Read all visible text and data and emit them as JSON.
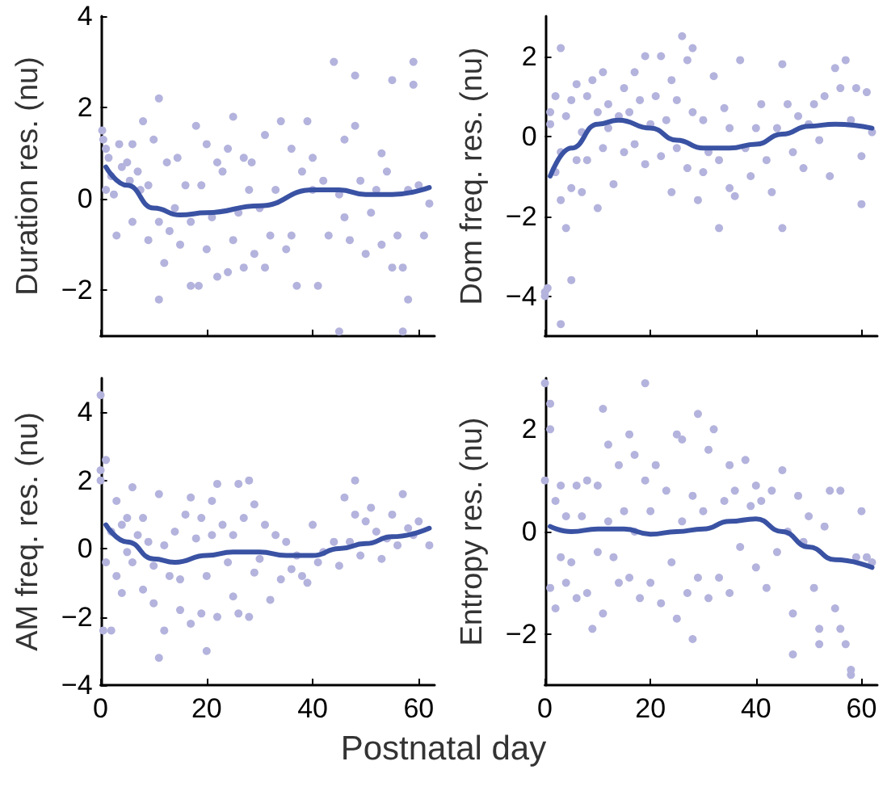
{
  "chart_data": [
    {
      "type": "scatter",
      "ylabel": "Duration res. (nu)",
      "xlim": [
        0,
        63
      ],
      "xticks": [
        0,
        20,
        40,
        60
      ],
      "ylim": [
        -3,
        4
      ],
      "yticks": [
        -2,
        0,
        2,
        4
      ],
      "tick_labels": "y",
      "marker": "circle",
      "series": [
        {
          "color": "#b3b3dd",
          "x": [
            0.3,
            0.5,
            1,
            1.5,
            2,
            1,
            2.5,
            3,
            3.5,
            4,
            5,
            5.5,
            6,
            6,
            7,
            7.5,
            8,
            9,
            9,
            10,
            11,
            11,
            11,
            12,
            12.5,
            13,
            14,
            14.5,
            15,
            16,
            17,
            17,
            18,
            18.5,
            19,
            20,
            20,
            21,
            22,
            22,
            23,
            24,
            24,
            25,
            25,
            26,
            27,
            27,
            28,
            28.5,
            29,
            30,
            31,
            31,
            32,
            33,
            34,
            35,
            36,
            36,
            37,
            38,
            39,
            40,
            40,
            41,
            42,
            43,
            44,
            45,
            46,
            46,
            47,
            48,
            48,
            49,
            50,
            51,
            52,
            53,
            53,
            54,
            55,
            55,
            56,
            57,
            57,
            58,
            58,
            59,
            59,
            60,
            61,
            62,
            45
          ],
          "values": [
            1.5,
            1.3,
            1.1,
            0.9,
            0.5,
            0.2,
            0.1,
            -0.8,
            1.2,
            0.7,
            0.8,
            0.4,
            1.2,
            -0.5,
            0.6,
            0.2,
            1.7,
            0.3,
            -0.9,
            1.3,
            -0.5,
            2.2,
            -2.2,
            -1.4,
            0.8,
            -0.7,
            -0.2,
            0.9,
            -1.0,
            0.3,
            -0.5,
            -1.9,
            1.6,
            -1.9,
            0.3,
            -1.1,
            1.2,
            -0.4,
            -1.7,
            0.8,
            0.6,
            1.1,
            -1.6,
            1.8,
            -0.9,
            -0.3,
            0.9,
            -1.5,
            0.2,
            0.8,
            -1.2,
            -0.2,
            1.4,
            -1.5,
            -0.8,
            0.2,
            1.7,
            -1.1,
            1.1,
            -0.8,
            -1.9,
            0.6,
            1.7,
            0.9,
            0.2,
            -1.9,
            0.4,
            -0.8,
            3.0,
            0.1,
            -0.4,
            1.3,
            -0.9,
            2.7,
            1.6,
            0.4,
            -1.2,
            -0.3,
            0.2,
            1.0,
            -1.0,
            0.6,
            -1.5,
            2.6,
            -0.8,
            -2.9,
            -1.5,
            -2.2,
            0.2,
            2.5,
            3.0,
            0.3,
            -0.8,
            -0.1,
            -2.9
          ]
        },
        {
          "type": "line",
          "color": "#3a52a3",
          "marker": "none",
          "x": [
            1,
            5,
            10,
            15,
            20,
            30,
            40,
            45,
            50,
            55,
            62
          ],
          "values": [
            0.7,
            0.3,
            -0.2,
            -0.35,
            -0.3,
            -0.15,
            0.2,
            0.2,
            0.1,
            0.1,
            0.25
          ]
        }
      ]
    },
    {
      "type": "scatter",
      "ylabel": "Dom freq. res. (nu)",
      "xlim": [
        0,
        63
      ],
      "xticks": [
        0,
        20,
        40,
        60
      ],
      "ylim": [
        -5,
        3
      ],
      "yticks": [
        -4,
        -2,
        0,
        2
      ],
      "tick_labels": "y",
      "marker": "circle",
      "series": [
        {
          "color": "#b3b3dd",
          "x": [
            0,
            0,
            0.5,
            3,
            5,
            3,
            1,
            1,
            2,
            2,
            3,
            3,
            4,
            4,
            5,
            5,
            6,
            6,
            7,
            7,
            8,
            8,
            9,
            10,
            10,
            11,
            11,
            12,
            12,
            13,
            14,
            15,
            15,
            16,
            17,
            17,
            18,
            19,
            19,
            20,
            21,
            22,
            22,
            23,
            24,
            24,
            25,
            25,
            26,
            27,
            27,
            28,
            28,
            29,
            30,
            30,
            31,
            32,
            33,
            33,
            34,
            35,
            35,
            36,
            37,
            38,
            39,
            40,
            41,
            42,
            43,
            44,
            45,
            45,
            46,
            47,
            48,
            49,
            50,
            51,
            52,
            53,
            54,
            55,
            56,
            57,
            58,
            59,
            60,
            60,
            61,
            62
          ],
          "values": [
            -3.9,
            -4.0,
            -3.8,
            -4.7,
            -3.6,
            2.2,
            0.6,
            0.3,
            -0.9,
            1.0,
            -1.6,
            -0.4,
            0.5,
            -2.3,
            0.9,
            -1.3,
            1.3,
            -0.6,
            0.1,
            -1.4,
            1.0,
            -0.6,
            1.4,
            -1.8,
            0.6,
            1.6,
            -0.3,
            0.2,
            0.8,
            -1.2,
            0.5,
            1.2,
            -0.4,
            0.6,
            1.6,
            -0.2,
            0.9,
            2.0,
            -0.7,
            0.3,
            1.0,
            2.0,
            -0.5,
            0.4,
            1.4,
            -1.4,
            0.9,
            -0.3,
            2.5,
            1.9,
            -0.8,
            2.2,
            0.6,
            -1.6,
            0.4,
            -0.9,
            -0.4,
            1.5,
            -2.3,
            -0.6,
            0.7,
            -1.3,
            0.2,
            -1.5,
            1.9,
            -0.3,
            -1.0,
            0.2,
            0.8,
            -0.6,
            -1.4,
            0.2,
            -2.3,
            1.8,
            0.8,
            -0.4,
            0.5,
            -0.8,
            0.3,
            0.8,
            -0.1,
            1.0,
            -1.0,
            1.7,
            1.2,
            1.9,
            0.4,
            1.2,
            -0.5,
            -1.7,
            1.1,
            0.1
          ]
        },
        {
          "type": "line",
          "color": "#3a52a3",
          "marker": "none",
          "x": [
            1,
            5,
            10,
            14,
            20,
            25,
            30,
            35,
            40,
            45,
            50,
            55,
            62
          ],
          "values": [
            -1.0,
            -0.3,
            0.3,
            0.4,
            0.2,
            -0.1,
            -0.3,
            -0.3,
            -0.2,
            0.05,
            0.25,
            0.3,
            0.2
          ]
        }
      ]
    },
    {
      "type": "scatter",
      "ylabel": "AM freq. res. (nu)",
      "xlabel": "Postnatal day",
      "xlim": [
        0,
        63
      ],
      "xticks": [
        0,
        20,
        40,
        60
      ],
      "ylim": [
        -4,
        5
      ],
      "yticks": [
        -4,
        -2,
        0,
        2,
        4
      ],
      "marker": "circle",
      "series": [
        {
          "color": "#b3b3dd",
          "x": [
            0,
            0,
            0,
            0.5,
            1,
            1,
            2,
            2,
            3,
            3,
            4,
            4,
            5,
            5,
            6,
            6,
            7,
            8,
            8,
            9,
            10,
            10,
            11,
            11,
            12,
            12,
            13,
            14,
            15,
            15,
            16,
            17,
            17,
            18,
            19,
            19,
            20,
            20,
            21,
            21,
            22,
            22,
            23,
            24,
            25,
            25,
            26,
            26,
            27,
            28,
            28,
            29,
            29,
            30,
            31,
            32,
            33,
            34,
            35,
            36,
            37,
            38,
            39,
            40,
            41,
            42,
            44,
            45,
            46,
            47,
            48,
            48,
            49,
            50,
            51,
            52,
            53,
            54,
            55,
            56,
            57,
            58,
            59,
            60,
            62
          ],
          "values": [
            4.5,
            2.3,
            2.0,
            -2.4,
            2.6,
            -0.4,
            -2.4,
            0.5,
            1.4,
            -0.8,
            0.7,
            -1.3,
            0.9,
            -0.1,
            1.8,
            -0.4,
            0.4,
            -1.2,
            0.9,
            0.2,
            -1.6,
            -0.5,
            1.6,
            -3.2,
            0.1,
            -2.4,
            -0.8,
            0.5,
            -1.8,
            -0.9,
            1.0,
            -2.2,
            1.5,
            0.3,
            -1.9,
            0.9,
            -3.0,
            -0.8,
            1.4,
            0.4,
            1.9,
            -2.0,
            0.7,
            -0.4,
            -1.4,
            0.4,
            -1.9,
            1.9,
            0.9,
            -2.0,
            2.0,
            1.3,
            -0.7,
            -0.3,
            0.7,
            -1.5,
            0.4,
            -0.9,
            0.2,
            -0.6,
            -0.2,
            -0.8,
            -1.0,
            0.7,
            -0.4,
            -0.1,
            0.2,
            -0.5,
            1.5,
            0.2,
            2.0,
            1.0,
            -0.2,
            0.8,
            1.2,
            0.5,
            -0.3,
            0.3,
            1.0,
            0.1,
            1.6,
            0.6,
            0.4,
            0.8,
            0.1
          ]
        },
        {
          "type": "line",
          "color": "#3a52a3",
          "marker": "none",
          "x": [
            1,
            5,
            10,
            14,
            20,
            25,
            30,
            35,
            40,
            45,
            50,
            55,
            62
          ],
          "values": [
            0.7,
            0.2,
            -0.3,
            -0.4,
            -0.2,
            -0.1,
            -0.1,
            -0.2,
            -0.2,
            0.0,
            0.15,
            0.35,
            0.6
          ]
        }
      ]
    },
    {
      "type": "scatter",
      "ylabel": "Entropy res. (nu)",
      "xlim": [
        0,
        63
      ],
      "xticks": [
        0,
        20,
        40,
        60
      ],
      "ylim": [
        -3,
        3
      ],
      "yticks": [
        -2,
        0,
        2
      ],
      "marker": "circle",
      "series": [
        {
          "color": "#b3b3dd",
          "x": [
            0,
            1,
            1,
            0,
            1,
            2,
            2,
            3,
            3,
            4,
            4,
            5,
            6,
            6,
            7,
            8,
            8,
            9,
            10,
            10,
            11,
            11,
            12,
            12,
            13,
            14,
            14,
            15,
            16,
            16,
            17,
            17,
            18,
            19,
            19,
            20,
            20,
            21,
            22,
            23,
            24,
            25,
            25,
            26,
            26,
            27,
            28,
            28,
            29,
            29,
            30,
            31,
            31,
            32,
            33,
            34,
            35,
            35,
            36,
            37,
            38,
            39,
            40,
            40,
            41,
            42,
            43,
            44,
            45,
            46,
            47,
            47,
            48,
            49,
            50,
            51,
            52,
            52,
            53,
            54,
            55,
            56,
            56,
            57,
            58,
            58,
            59,
            60,
            61,
            62
          ],
          "values": [
            2.9,
            2.5,
            2.0,
            1.0,
            -1.1,
            -1.5,
            0.6,
            0.9,
            -0.5,
            0.3,
            -1.0,
            -0.6,
            0.9,
            -1.3,
            0.3,
            1.0,
            -1.2,
            -1.9,
            0.9,
            -0.4,
            2.4,
            -1.6,
            0.2,
            1.7,
            -0.5,
            1.3,
            -1.0,
            0.4,
            1.9,
            -0.9,
            1.5,
            0.0,
            -1.3,
            2.9,
            1.0,
            -1.0,
            0.4,
            1.3,
            -1.4,
            0.8,
            -0.6,
            1.9,
            -1.7,
            1.8,
            0.2,
            -1.2,
            -2.1,
            0.7,
            2.3,
            -0.9,
            0.4,
            1.6,
            -1.3,
            2.0,
            -0.9,
            0.6,
            1.3,
            -1.2,
            0.8,
            -0.3,
            1.4,
            0.5,
            0.9,
            -0.7,
            0.6,
            -1.1,
            0.8,
            -0.4,
            1.2,
            0.0,
            -1.6,
            -2.4,
            0.7,
            -0.2,
            0.3,
            -1.1,
            -1.9,
            -2.2,
            0.1,
            0.8,
            -1.5,
            0.8,
            -1.9,
            -2.2,
            -2.7,
            -2.8,
            -0.5,
            0.4,
            -0.5,
            -0.6
          ]
        },
        {
          "type": "line",
          "color": "#3a52a3",
          "marker": "none",
          "x": [
            1,
            5,
            10,
            15,
            20,
            25,
            30,
            35,
            40,
            45,
            50,
            55,
            62
          ],
          "values": [
            0.1,
            0.0,
            0.05,
            0.05,
            -0.05,
            0.0,
            0.05,
            0.2,
            0.25,
            0.0,
            -0.3,
            -0.55,
            -0.7
          ]
        }
      ]
    }
  ]
}
